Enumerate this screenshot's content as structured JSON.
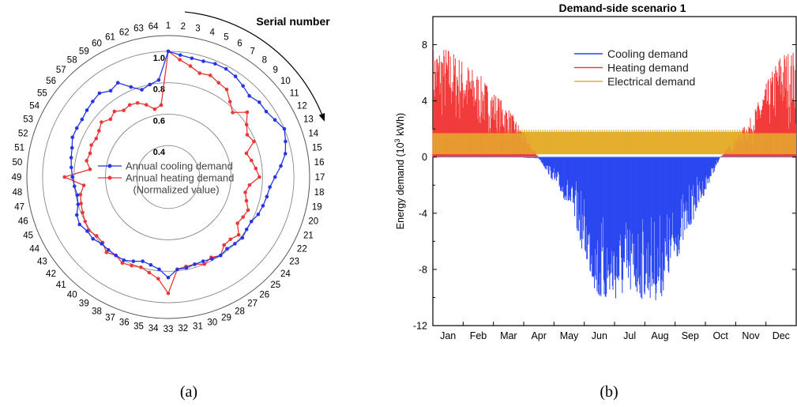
{
  "chart_data": [
    {
      "type": "polar-line",
      "caption": "(a)",
      "title": "",
      "direction_label": "Serial number",
      "radial_ticks": [
        "0.4",
        "0.6",
        "0.8",
        "1.0"
      ],
      "rlim": [
        0.2,
        1.1
      ],
      "categories": [
        "1",
        "2",
        "3",
        "4",
        "5",
        "6",
        "7",
        "8",
        "9",
        "10",
        "11",
        "12",
        "13",
        "14",
        "15",
        "16",
        "17",
        "18",
        "19",
        "20",
        "21",
        "22",
        "23",
        "24",
        "25",
        "26",
        "27",
        "28",
        "29",
        "30",
        "31",
        "32",
        "33",
        "34",
        "35",
        "36",
        "37",
        "38",
        "39",
        "40",
        "41",
        "42",
        "43",
        "44",
        "45",
        "46",
        "47",
        "48",
        "49",
        "50",
        "51",
        "52",
        "53",
        "54",
        "55",
        "56",
        "57",
        "58",
        "59",
        "60",
        "61",
        "62",
        "63",
        "64"
      ],
      "legend": {
        "entries": [
          "Annual cooling demand",
          "Annual heating demand"
        ],
        "note": "(Normalized value)"
      },
      "series": [
        {
          "name": "Annual cooling demand",
          "color": "#2436e6",
          "values": [
            1.0,
            0.98,
            0.97,
            0.97,
            0.98,
            0.98,
            0.97,
            0.95,
            0.93,
            0.95,
            0.95,
            0.97,
            1.0,
            0.98,
            0.96,
            0.92,
            0.88,
            0.85,
            0.84,
            0.83,
            0.82,
            0.8,
            0.8,
            0.81,
            0.8,
            0.79,
            0.8,
            0.79,
            0.78,
            0.78,
            0.79,
            0.79,
            0.84,
            0.79,
            0.77,
            0.76,
            0.78,
            0.8,
            0.8,
            0.8,
            0.8,
            0.82,
            0.82,
            0.84,
            0.83,
            0.8,
            0.79,
            0.8,
            0.81,
            0.82,
            0.83,
            0.84,
            0.86,
            0.86,
            0.86,
            0.87,
            0.88,
            0.89,
            0.86,
            0.88,
            0.82,
            0.78,
            0.8,
            0.82
          ]
        },
        {
          "name": "Annual heating demand",
          "color": "#e83838",
          "values": [
            1.0,
            0.95,
            0.92,
            0.89,
            0.9,
            0.88,
            0.87,
            0.82,
            0.78,
            0.85,
            0.8,
            0.77,
            0.79,
            0.72,
            0.74,
            0.76,
            0.78,
            0.72,
            0.7,
            0.72,
            0.75,
            0.74,
            0.73,
            0.78,
            0.76,
            0.76,
            0.8,
            0.78,
            0.8,
            0.78,
            0.78,
            0.79,
            0.94,
            0.85,
            0.82,
            0.8,
            0.81,
            0.82,
            0.8,
            0.82,
            0.79,
            0.79,
            0.81,
            0.8,
            0.79,
            0.78,
            0.77,
            0.74,
            0.86,
            0.7,
            0.73,
            0.72,
            0.73,
            0.72,
            0.73,
            0.75,
            0.72,
            0.74,
            0.71,
            0.72,
            0.71,
            0.68,
            0.64,
            0.66
          ]
        }
      ]
    },
    {
      "type": "area",
      "caption": "(b)",
      "title": "Demand-side scenario 1",
      "ylabel_main": "Energy demand (10",
      "ylabel_sup": "3",
      "ylabel_tail": " kWh)",
      "xlabel": "",
      "categories": [
        "Jan",
        "Feb",
        "Mar",
        "Apr",
        "May",
        "Jun",
        "Jul",
        "Aug",
        "Sep",
        "Oct",
        "Nov",
        "Dec"
      ],
      "yticks": [
        "8",
        "4",
        "0",
        "-4",
        "-8",
        "-12"
      ],
      "ylim": [
        -12,
        10
      ],
      "legend": {
        "placement": "top-center",
        "entries": [
          "Cooling demand",
          "Heating demand",
          "Electrical demand"
        ]
      },
      "series": [
        {
          "name": "Cooling demand",
          "color": "#2a46f0",
          "envelope_by_month": [
            0,
            0,
            0,
            -0.1,
            -3.6,
            -10.6,
            -10.0,
            -10.3,
            -5.0,
            0,
            0,
            0
          ]
        },
        {
          "name": "Heating demand",
          "color": "#f23a3a",
          "envelope_by_month": [
            7.9,
            6.0,
            3.5,
            0,
            0,
            0,
            0,
            0,
            0,
            0,
            2.8,
            7.6
          ]
        },
        {
          "name": "Electrical demand",
          "color": "#e5ae2e",
          "range": [
            0.2,
            1.8
          ]
        }
      ]
    }
  ]
}
